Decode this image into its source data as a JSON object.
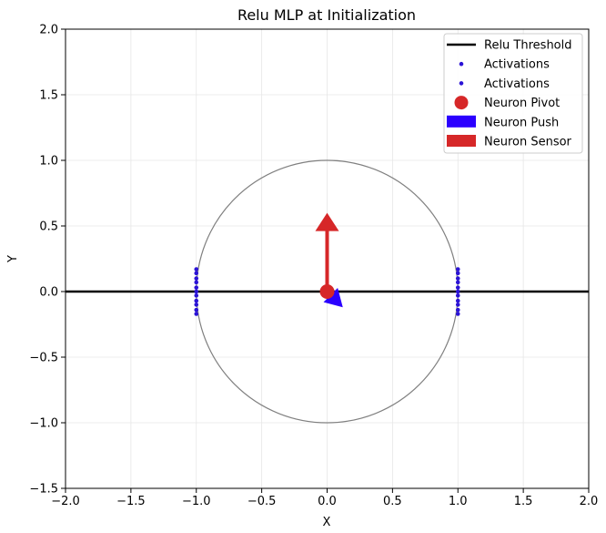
{
  "chart_data": {
    "type": "scatter",
    "title": "Relu MLP at Initialization",
    "xlabel": "X",
    "ylabel": "Y",
    "xlim": [
      -2.0,
      2.0
    ],
    "ylim": [
      -1.5,
      2.0
    ],
    "xticks": [
      -2.0,
      -1.5,
      -1.0,
      -0.5,
      0.0,
      0.5,
      1.0,
      1.5,
      2.0
    ],
    "yticks": [
      -1.5,
      -1.0,
      -0.5,
      0.0,
      0.5,
      1.0,
      1.5,
      2.0
    ],
    "xtick_labels": [
      "−2.0",
      "−1.5",
      "−1.0",
      "−0.5",
      "0.0",
      "0.5",
      "1.0",
      "1.5",
      "2.0"
    ],
    "ytick_labels": [
      "−1.5",
      "−1.0",
      "−0.5",
      "0.0",
      "0.5",
      "1.0",
      "1.5",
      "2.0"
    ],
    "grid": true,
    "legend_position": "top-right",
    "unit_circle": {
      "center": [
        0.0,
        0.0
      ],
      "radius": 1.0,
      "color": "#808080"
    },
    "relu_threshold": {
      "name": "Relu Threshold",
      "y": 0.0,
      "color": "#000000"
    },
    "series": [
      {
        "name": "Activations",
        "color": "#2b13d6",
        "points": [
          [
            -1.0,
            -0.17
          ],
          [
            -1.0,
            -0.14
          ],
          [
            -1.0,
            -0.1
          ],
          [
            -1.0,
            -0.07
          ],
          [
            -1.0,
            -0.03
          ],
          [
            -1.0,
            0.0
          ],
          [
            -1.0,
            0.03
          ],
          [
            -1.0,
            0.07
          ],
          [
            -1.0,
            0.1
          ],
          [
            -1.0,
            0.14
          ],
          [
            -1.0,
            0.17
          ]
        ]
      },
      {
        "name": "Activations",
        "color": "#2b13d6",
        "points": [
          [
            1.0,
            -0.17
          ],
          [
            1.0,
            -0.14
          ],
          [
            1.0,
            -0.1
          ],
          [
            1.0,
            -0.07
          ],
          [
            1.0,
            -0.03
          ],
          [
            1.0,
            0.0
          ],
          [
            1.0,
            0.03
          ],
          [
            1.0,
            0.07
          ],
          [
            1.0,
            0.1
          ],
          [
            1.0,
            0.14
          ],
          [
            1.0,
            0.17
          ]
        ]
      }
    ],
    "neuron_pivot": {
      "name": "Neuron Pivot",
      "x": 0.0,
      "y": 0.0,
      "color": "#d62728"
    },
    "neuron_push": {
      "name": "Neuron Push",
      "from": [
        0.0,
        0.0
      ],
      "to": [
        0.12,
        -0.12
      ],
      "color": "#2b00ff"
    },
    "neuron_sensor": {
      "name": "Neuron Sensor",
      "from": [
        0.0,
        0.0
      ],
      "to": [
        0.0,
        0.6
      ],
      "color": "#d62728"
    }
  }
}
